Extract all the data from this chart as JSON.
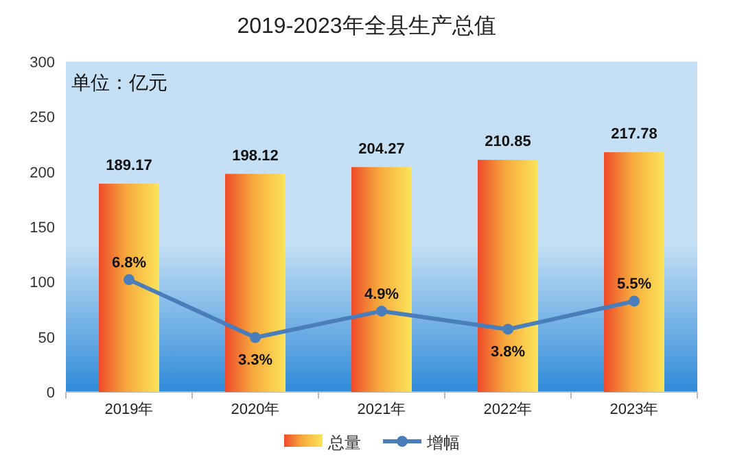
{
  "chart_data": {
    "type": "bar",
    "title": "2019-2023年全县生产总值",
    "annotations": [
      "单位：亿元"
    ],
    "categories": [
      "2019年",
      "2020年",
      "2021年",
      "2022年",
      "2023年"
    ],
    "series": [
      {
        "name": "总量",
        "color": "#f6a83c",
        "values": [
          189.17,
          198.12,
          204.27,
          210.85,
          217.78
        ],
        "value_labels": [
          "189.17",
          "198.12",
          "204.27",
          "210.85",
          "217.78"
        ]
      },
      {
        "name": "增幅",
        "type": "line",
        "axis": "y2",
        "color": "#4a7ebb",
        "marker": "circle",
        "values": [
          6.8,
          3.3,
          4.9,
          3.8,
          5.5
        ],
        "value_labels": [
          "6.8%",
          "3.3%",
          "4.9%",
          "3.8%",
          "5.5%"
        ]
      }
    ],
    "ylim": [
      0,
      300
    ],
    "yticks": [
      0,
      50,
      100,
      150,
      200,
      250,
      300
    ],
    "y2lim": [
      0,
      20
    ],
    "legend": "bottom",
    "grid": false
  }
}
